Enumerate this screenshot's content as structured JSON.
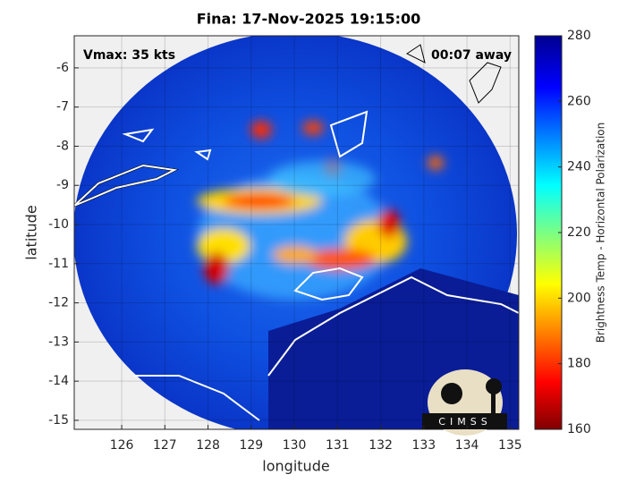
{
  "title": "Fina: 17-Nov-2025 19:15:00",
  "annotations": {
    "vmax": "Vmax: 35 kts",
    "away": "00:07 away"
  },
  "xlabel": "longitude",
  "ylabel": "latitude",
  "xlim": [
    124.9,
    135.2
  ],
  "ylim": [
    -15.23,
    -5.18
  ],
  "xticks": [
    126,
    127,
    128,
    129,
    130,
    131,
    132,
    133,
    134,
    135
  ],
  "yticks": [
    -6,
    -7,
    -8,
    -9,
    -10,
    -11,
    -12,
    -13,
    -14,
    -15
  ],
  "colorbar": {
    "label": "Brightness Temp - Horizontal Polarization",
    "lim": [
      160,
      280
    ],
    "ticks": [
      280,
      260,
      240,
      220,
      200,
      180,
      160
    ]
  },
  "logo": "CIMSS"
}
